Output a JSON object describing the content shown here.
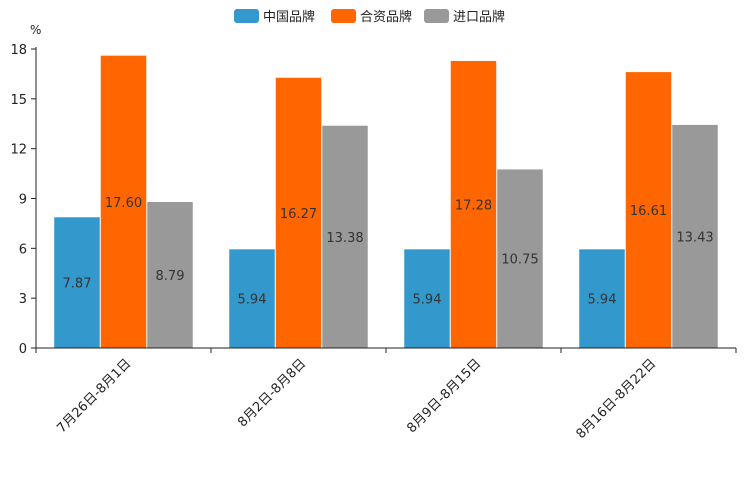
{
  "chart_data": {
    "type": "bar",
    "unit": "%",
    "categories": [
      "7月26日-8月1日",
      "8月2日-8月8日",
      "8月9日-8月15日",
      "8月16日-8月22日"
    ],
    "series": [
      {
        "name": "中国品牌",
        "color": "#3399cc",
        "values": [
          7.87,
          5.94,
          5.94,
          5.94
        ],
        "labels": [
          "7.87",
          "5.94",
          "5.94",
          "5.94"
        ]
      },
      {
        "name": "合资品牌",
        "color": "#ff6600",
        "values": [
          17.6,
          16.27,
          17.28,
          16.61
        ],
        "labels": [
          "17.60",
          "16.27",
          "17.28",
          "16.61"
        ]
      },
      {
        "name": "进口品牌",
        "color": "#999999",
        "values": [
          8.79,
          13.38,
          10.75,
          13.43
        ],
        "labels": [
          "8.79",
          "13.38",
          "10.75",
          "13.43"
        ]
      }
    ],
    "ylim": [
      0,
      18
    ],
    "yticks": [
      "0",
      "3",
      "6",
      "9",
      "12",
      "15",
      "18"
    ],
    "legend_position": "top-center"
  }
}
